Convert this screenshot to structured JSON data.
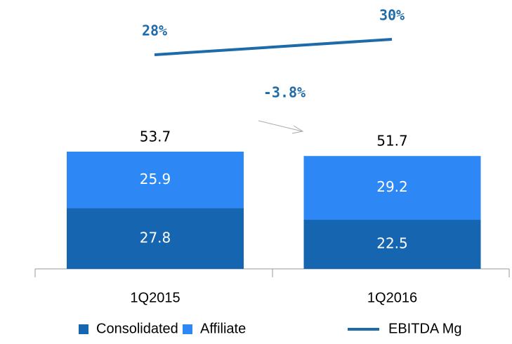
{
  "chart_data": {
    "type": "bar",
    "categories": [
      "1Q2015",
      "1Q2016"
    ],
    "series": [
      {
        "name": "Consolidated",
        "color": "#1565b0",
        "values": [
          27.8,
          22.5
        ]
      },
      {
        "name": "Affiliate",
        "color": "#2d87f5",
        "values": [
          25.9,
          29.2
        ]
      }
    ],
    "totals": [
      53.7,
      51.7
    ],
    "line": {
      "name": "EBITDA Mg",
      "color": "#1f6aa8",
      "values": [
        28,
        30
      ],
      "value_labels": [
        "28%",
        "30%"
      ]
    },
    "annotation": "-3.8%",
    "stacked": true
  }
}
